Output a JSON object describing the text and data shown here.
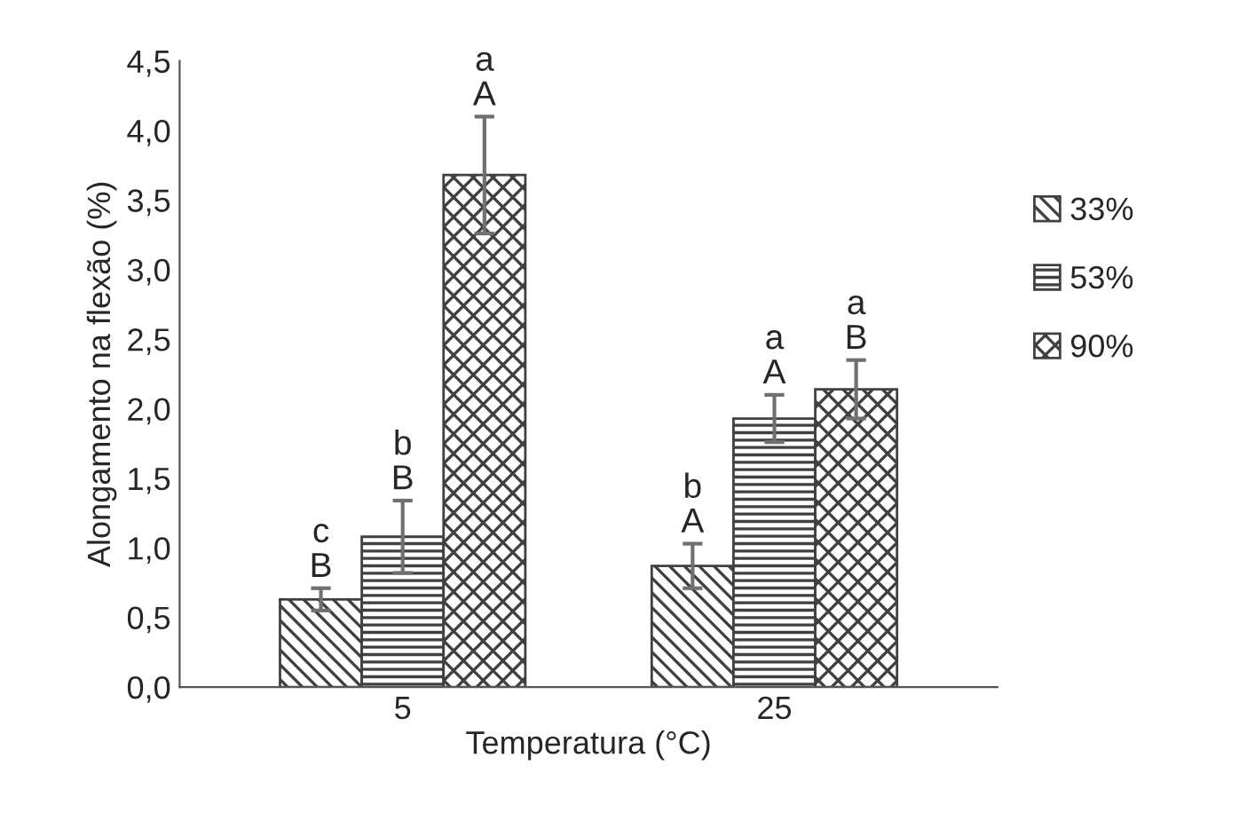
{
  "chart_data": {
    "type": "bar",
    "xlabel": "Temperatura (°C)",
    "ylabel": "Alongamento na flexão (%)",
    "categories": [
      "5",
      "25"
    ],
    "series": [
      {
        "name": "33%",
        "color": "#404040",
        "values": [
          0.63,
          0.87
        ],
        "errors": [
          0.08,
          0.16
        ]
      },
      {
        "name": "53%",
        "color": "#404040",
        "values": [
          1.08,
          1.93
        ],
        "errors": [
          0.26,
          0.17
        ]
      },
      {
        "name": "90%",
        "color": "#404040",
        "values": [
          3.68,
          2.14
        ],
        "errors": [
          0.42,
          0.21
        ]
      }
    ],
    "ylim": [
      0,
      4.5
    ],
    "yticks": [
      {
        "value": 0,
        "label": "0,0"
      },
      {
        "value": 0.5,
        "label": "0,5"
      },
      {
        "value": 1,
        "label": "1,0"
      },
      {
        "value": 1.5,
        "label": "1,5"
      },
      {
        "value": 2,
        "label": "2,0"
      },
      {
        "value": 2.5,
        "label": "2,5"
      },
      {
        "value": 3,
        "label": "3,0"
      },
      {
        "value": 3.5,
        "label": "3,5"
      },
      {
        "value": 4,
        "label": "4,0"
      },
      {
        "value": 4.5,
        "label": "4,5"
      }
    ],
    "annotations": [
      "c\nB",
      "b\nB",
      "a\nA",
      "b\nA",
      "a\nA",
      "a\nB"
    ],
    "grid": false,
    "legend": "right"
  }
}
